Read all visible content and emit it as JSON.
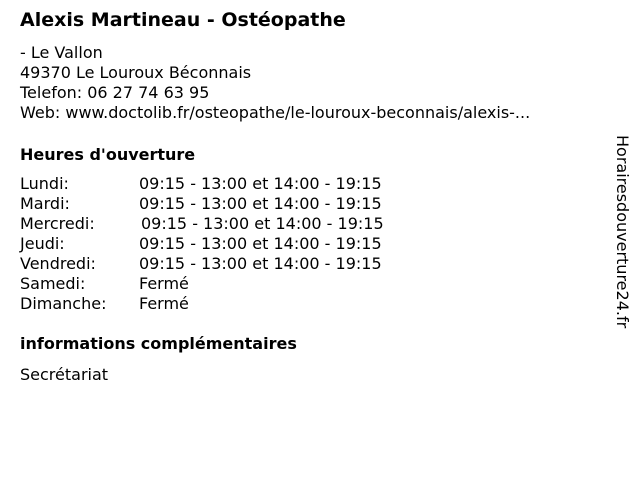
{
  "title": "Alexis Martineau - Ostéopathe",
  "address": {
    "street": "- Le Vallon",
    "city": "49370 Le Louroux Béconnais",
    "phone": "Telefon: 06 27 74 63 95",
    "web": "Web: www.doctolib.fr/osteopathe/le-louroux-beconnais/alexis-..."
  },
  "hours_heading": "Heures d'ouverture",
  "hours": [
    {
      "day": "Lundi:",
      "time": "09:15 - 13:00 et 14:00 - 19:15"
    },
    {
      "day": "Mardi:",
      "time": "09:15 - 13:00 et 14:00 - 19:15"
    },
    {
      "day": "Mercredi:",
      "time": "09:15 - 13:00 et 14:00 - 19:15"
    },
    {
      "day": "Jeudi:",
      "time": "09:15 - 13:00 et 14:00 - 19:15"
    },
    {
      "day": "Vendredi:",
      "time": "09:15 - 13:00 et 14:00 - 19:15"
    },
    {
      "day": "Samedi:",
      "time": "Fermé"
    },
    {
      "day": "Dimanche:",
      "time": "Fermé"
    }
  ],
  "info_heading": "informations complémentaires",
  "info_text": "Secrétariat",
  "watermark": "Horairesdouverture24.fr"
}
